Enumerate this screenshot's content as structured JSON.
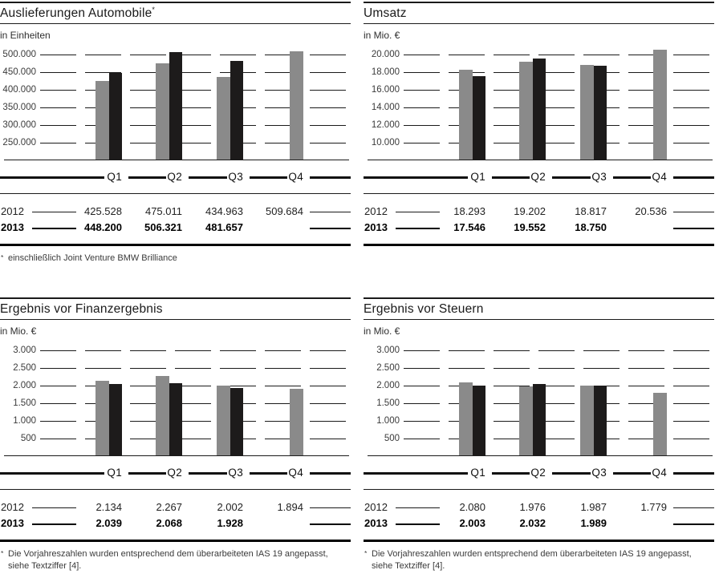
{
  "colors": {
    "bar_2012": "#8a8a8a",
    "bar_2013": "#1d1b1b",
    "rule": "#1a1a1a"
  },
  "legend": {
    "series_2012": "2012",
    "series_2013": "2013"
  },
  "chart_data": [
    {
      "id": "auslieferungen",
      "type": "bar",
      "title": "Auslieferungen Automobile",
      "title_sup": "*",
      "unit": "in Einheiten",
      "categories": [
        "Q1",
        "Q2",
        "Q3",
        "Q4"
      ],
      "y_ticks": [
        "500.000",
        "450.000",
        "400.000",
        "350.000",
        "300.000",
        "250.000"
      ],
      "y_top": 500000,
      "y_baseline": 200000,
      "series": [
        {
          "name": "2012",
          "values": [
            425528,
            475011,
            434963,
            509684
          ]
        },
        {
          "name": "2013",
          "values": [
            448200,
            506321,
            481657,
            null
          ]
        }
      ],
      "table": [
        {
          "year": "2012",
          "bold": false,
          "cells": [
            "425.528",
            "475.011",
            "434.963",
            "509.684"
          ],
          "sups": [
            "",
            "",
            "",
            ""
          ]
        },
        {
          "year": "2013",
          "bold": true,
          "cells": [
            "448.200",
            "506.321",
            "481.657",
            ""
          ],
          "sups": [
            "",
            "",
            "",
            ""
          ]
        }
      ],
      "footnote": {
        "sup": "*",
        "lines": [
          "einschließlich Joint Venture BMW Brilliance"
        ]
      }
    },
    {
      "id": "umsatz",
      "type": "bar",
      "title": "Umsatz",
      "title_sup": "",
      "unit": "in Mio. €",
      "categories": [
        "Q1",
        "Q2",
        "Q3",
        "Q4"
      ],
      "y_ticks": [
        "20.000",
        "18.000",
        "16.000",
        "14.000",
        "12.000",
        "10.000"
      ],
      "y_top": 20000,
      "y_baseline": 8000,
      "series": [
        {
          "name": "2012",
          "values": [
            18293,
            19202,
            18817,
            20536
          ]
        },
        {
          "name": "2013",
          "values": [
            17546,
            19552,
            18750,
            null
          ]
        }
      ],
      "table": [
        {
          "year": "2012",
          "bold": false,
          "cells": [
            "18.293",
            "19.202",
            "18.817",
            "20.536"
          ],
          "sups": [
            "",
            "",
            "",
            ""
          ]
        },
        {
          "year": "2013",
          "bold": true,
          "cells": [
            "17.546",
            "19.552",
            "18.750",
            ""
          ],
          "sups": [
            "",
            "",
            "",
            ""
          ]
        }
      ],
      "footnote": null
    },
    {
      "id": "ergebnis-finanzergebnis",
      "type": "bar",
      "title": "Ergebnis vor Finanzergebnis",
      "title_sup": "",
      "unit": "in Mio. €",
      "categories": [
        "Q1",
        "Q2",
        "Q3",
        "Q4"
      ],
      "y_ticks": [
        "3.000",
        "2.500",
        "2.000",
        "1.500",
        "1.000",
        "500"
      ],
      "y_top": 3000,
      "y_baseline": 0,
      "series": [
        {
          "name": "2012",
          "values": [
            2134,
            2267,
            2002,
            1894
          ]
        },
        {
          "name": "2013",
          "values": [
            2039,
            2068,
            1928,
            null
          ]
        }
      ],
      "table": [
        {
          "year": "2012",
          "bold": false,
          "cells": [
            "2.134",
            "2.267",
            "2.002",
            "1.894"
          ],
          "sups": [
            "*",
            "*",
            "*",
            ""
          ]
        },
        {
          "year": "2013",
          "bold": true,
          "cells": [
            "2.039",
            "2.068",
            "1.928",
            ""
          ],
          "sups": [
            "",
            "",
            "",
            ""
          ]
        }
      ],
      "footnote": {
        "sup": "*",
        "lines": [
          "Die Vorjahreszahlen wurden entsprechend dem überarbeiteten IAS 19 angepasst,",
          "siehe Textziffer [4]."
        ]
      }
    },
    {
      "id": "ergebnis-steuern",
      "type": "bar",
      "title": "Ergebnis vor Steuern",
      "title_sup": "",
      "unit": "in Mio. €",
      "categories": [
        "Q1",
        "Q2",
        "Q3",
        "Q4"
      ],
      "y_ticks": [
        "3.000",
        "2.500",
        "2.000",
        "1.500",
        "1.000",
        "500"
      ],
      "y_top": 3000,
      "y_baseline": 0,
      "series": [
        {
          "name": "2012",
          "values": [
            2080,
            1976,
            1987,
            1779
          ]
        },
        {
          "name": "2013",
          "values": [
            2003,
            2032,
            1989,
            null
          ]
        }
      ],
      "table": [
        {
          "year": "2012",
          "bold": false,
          "cells": [
            "2.080",
            "1.976",
            "1.987",
            "1.779"
          ],
          "sups": [
            "*",
            "*",
            "*",
            ""
          ]
        },
        {
          "year": "2013",
          "bold": true,
          "cells": [
            "2.003",
            "2.032",
            "1.989",
            ""
          ],
          "sups": [
            "",
            "",
            "",
            ""
          ]
        }
      ],
      "footnote": {
        "sup": "*",
        "lines": [
          "Die Vorjahreszahlen wurden entsprechend dem überarbeiteten IAS 19 angepasst,",
          "siehe Textziffer [4]."
        ]
      }
    }
  ]
}
